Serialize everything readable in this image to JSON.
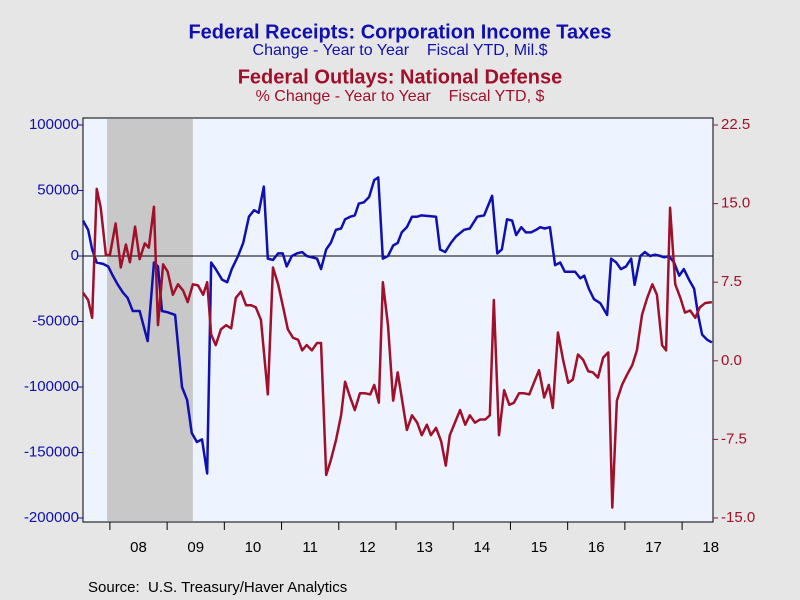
{
  "chart_data": {
    "type": "line",
    "series": [
      {
        "name": "Federal Receipts: Corporation Income Taxes",
        "subtitle": "Change - Year to Year    Fiscal YTD, Mil.$",
        "color": "#1010b0",
        "axis": "y",
        "x": [
          2007.53,
          2007.62,
          2007.69,
          2007.77,
          2007.88,
          2007.97,
          2008.05,
          2008.14,
          2008.23,
          2008.31,
          2008.4,
          2008.52,
          2008.66,
          2008.77,
          2008.84,
          2008.91,
          2009.01,
          2009.14,
          2009.26,
          2009.35,
          2009.43,
          2009.52,
          2009.61,
          2009.7,
          2009.77,
          2009.85,
          2009.96,
          2010.05,
          2010.13,
          2010.24,
          2010.33,
          2010.43,
          2010.52,
          2010.6,
          2010.69,
          2010.76,
          2010.85,
          2010.94,
          2011.02,
          2011.09,
          2011.18,
          2011.27,
          2011.36,
          2011.44,
          2011.53,
          2011.62,
          2011.69,
          2011.78,
          2011.86,
          2011.95,
          2012.04,
          2012.11,
          2012.2,
          2012.28,
          2012.35,
          2012.44,
          2012.53,
          2012.62,
          2012.69,
          2012.77,
          2012.86,
          2012.95,
          2013.03,
          2013.1,
          2013.19,
          2013.28,
          2013.37,
          2013.44,
          2013.7,
          2013.77,
          2013.86,
          2013.96,
          2014.05,
          2014.19,
          2014.29,
          2014.42,
          2014.54,
          2014.68,
          2014.77,
          2014.85,
          2014.94,
          2015.03,
          2015.1,
          2015.19,
          2015.27,
          2015.36,
          2015.45,
          2015.52,
          2015.6,
          2015.69,
          2015.78,
          2015.87,
          2015.95,
          2016.04,
          2016.13,
          2016.22,
          2016.29,
          2016.37,
          2016.46,
          2016.57,
          2016.69,
          2016.76,
          2016.85,
          2016.93,
          2017.02,
          2017.11,
          2017.17,
          2017.27,
          2017.35,
          2017.44,
          2017.53,
          2017.62,
          2017.69,
          2017.77,
          2017.86,
          2017.95,
          2018.03,
          2018.12,
          2018.21,
          2018.28,
          2018.35,
          2018.44,
          2018.52
        ],
        "values": [
          27000,
          20000,
          5000,
          -5000,
          -6000,
          -8000,
          -15000,
          -22000,
          -28000,
          -32000,
          -42000,
          -42000,
          -65000,
          -5000,
          -8000,
          -42000,
          -43000,
          -45000,
          -100000,
          -110000,
          -135000,
          -142000,
          -140000,
          -166000,
          -5000,
          -10000,
          -18000,
          -20000,
          -10000,
          0,
          10000,
          30000,
          35000,
          33000,
          53000,
          -2000,
          -3000,
          2000,
          2000,
          -8000,
          0,
          2000,
          3000,
          0,
          -1000,
          -2000,
          -10000,
          5000,
          10000,
          20000,
          21000,
          28000,
          30000,
          31000,
          40000,
          41000,
          45000,
          58000,
          60000,
          -2000,
          0,
          8000,
          10000,
          18000,
          22000,
          30000,
          30000,
          31000,
          30000,
          5000,
          3000,
          10000,
          15000,
          20000,
          21000,
          30000,
          31000,
          46000,
          2000,
          5000,
          28000,
          27000,
          16000,
          22000,
          18000,
          18000,
          20000,
          22000,
          21000,
          22000,
          -7000,
          -5000,
          -12000,
          -12000,
          -12000,
          -17000,
          -15000,
          -25000,
          -33000,
          -36000,
          -45000,
          -2000,
          -5000,
          -10000,
          -8000,
          -2000,
          -22000,
          0,
          3000,
          0,
          1000,
          0,
          -1000,
          0,
          -5000,
          -15000,
          -10000,
          -18000,
          -25000,
          -45000,
          -60000,
          -64000,
          -66000
        ]
      },
      {
        "name": "Federal Outlays: National Defense",
        "subtitle": "% Change - Year to Year    Fiscal YTD, $",
        "color": "#a0102a",
        "axis": "y2",
        "x": [
          2007.53,
          2007.62,
          2007.69,
          2007.77,
          2007.84,
          2007.93,
          2008.0,
          2008.1,
          2008.19,
          2008.28,
          2008.35,
          2008.44,
          2008.52,
          2008.61,
          2008.68,
          2008.77,
          2008.84,
          2008.93,
          2009.01,
          2009.1,
          2009.19,
          2009.28,
          2009.36,
          2009.45,
          2009.54,
          2009.63,
          2009.7,
          2009.77,
          2009.85,
          2009.94,
          2010.03,
          2010.12,
          2010.2,
          2010.29,
          2010.38,
          2010.47,
          2010.55,
          2010.64,
          2010.76,
          2010.85,
          2010.94,
          2011.02,
          2011.11,
          2011.2,
          2011.29,
          2011.36,
          2011.44,
          2011.53,
          2011.62,
          2011.69,
          2011.78,
          2011.86,
          2011.95,
          2012.04,
          2012.11,
          2012.2,
          2012.28,
          2012.37,
          2012.46,
          2012.55,
          2012.62,
          2012.7,
          2012.77,
          2012.86,
          2012.95,
          2013.03,
          2013.12,
          2013.19,
          2013.28,
          2013.37,
          2013.45,
          2013.54,
          2013.61,
          2013.7,
          2013.79,
          2013.87,
          2013.94,
          2014.03,
          2014.12,
          2014.21,
          2014.29,
          2014.38,
          2014.47,
          2014.56,
          2014.64,
          2014.71,
          2014.8,
          2014.89,
          2014.98,
          2015.06,
          2015.15,
          2015.24,
          2015.33,
          2015.41,
          2015.5,
          2015.59,
          2015.67,
          2015.74,
          2015.83,
          2015.92,
          2016.01,
          2016.09,
          2016.18,
          2016.27,
          2016.36,
          2016.44,
          2016.53,
          2016.62,
          2016.71,
          2016.78,
          2016.86,
          2016.95,
          2017.04,
          2017.13,
          2017.21,
          2017.3,
          2017.39,
          2017.48,
          2017.56,
          2017.65,
          2017.72,
          2017.79,
          2017.88,
          2017.97,
          2018.05,
          2018.14,
          2018.23,
          2018.31,
          2018.4,
          2018.52
        ],
        "values": [
          6.5,
          5.8,
          4.1,
          16.4,
          14.6,
          10.1,
          10.1,
          13.1,
          8.9,
          11.1,
          9.4,
          12.8,
          9.7,
          11.2,
          10.8,
          14.7,
          3.4,
          9.2,
          8.5,
          6.3,
          7.3,
          6.7,
          5.6,
          7.3,
          7.2,
          6.3,
          7.5,
          2.5,
          1.5,
          3.0,
          3.4,
          3.1,
          6.0,
          6.6,
          5.3,
          5.3,
          5.1,
          3.9,
          -3.2,
          8.9,
          7.3,
          5.3,
          3.0,
          2.2,
          2.0,
          1.0,
          1.5,
          1.0,
          1.7,
          1.7,
          -10.9,
          -9.5,
          -7.6,
          -5.2,
          -2.0,
          -3.5,
          -4.7,
          -3.1,
          -3.1,
          -3.2,
          -2.3,
          -4.0,
          7.5,
          3.4,
          -3.8,
          -1.1,
          -4.2,
          -6.6,
          -5.2,
          -5.9,
          -7.1,
          -6.1,
          -7.1,
          -6.4,
          -7.7,
          -10.0,
          -7.1,
          -5.9,
          -4.7,
          -6.1,
          -5.2,
          -5.9,
          -5.6,
          -5.6,
          -5.2,
          5.8,
          -7.1,
          -2.8,
          -4.2,
          -4.0,
          -3.1,
          -3.1,
          -3.2,
          -2.1,
          -0.9,
          -3.5,
          -2.3,
          -4.5,
          2.7,
          0.1,
          -2.1,
          -1.8,
          0.6,
          0.1,
          -1.0,
          -1.1,
          -1.6,
          0.3,
          0.8,
          -14.0,
          -3.8,
          -2.3,
          -1.3,
          -0.4,
          1.0,
          4.4,
          6.0,
          7.3,
          6.3,
          1.5,
          1.0,
          14.6,
          7.3,
          6.0,
          4.6,
          4.8,
          4.1,
          5.1,
          5.5,
          5.6
        ]
      }
    ],
    "xlim": [
      2007.53,
      2018.54
    ],
    "xticks": [
      {
        "value": 2008.5,
        "label": "08"
      },
      {
        "value": 2009.5,
        "label": "09"
      },
      {
        "value": 2010.5,
        "label": "10"
      },
      {
        "value": 2011.5,
        "label": "11"
      },
      {
        "value": 2012.5,
        "label": "12"
      },
      {
        "value": 2013.5,
        "label": "13"
      },
      {
        "value": 2014.5,
        "label": "14"
      },
      {
        "value": 2015.5,
        "label": "15"
      },
      {
        "value": 2016.5,
        "label": "16"
      },
      {
        "value": 2017.5,
        "label": "17"
      },
      {
        "value": 2018.5,
        "label": "18"
      }
    ],
    "xtick_marks": [
      2008,
      2009,
      2010,
      2011,
      2012,
      2013,
      2014,
      2015,
      2016,
      2017,
      2018
    ],
    "ylim": [
      -200000,
      100000
    ],
    "yticks": [
      100000,
      50000,
      0,
      -50000,
      -100000,
      -150000,
      -200000
    ],
    "y2lim": [
      -15,
      22.5
    ],
    "y2ticks": [
      22.5,
      {
        "value": 15,
        "label": "15.0"
      },
      7.5,
      {
        "value": 0,
        "label": "0.0"
      },
      -7.5,
      {
        "value": -15,
        "label": "-15.0"
      }
    ],
    "shading": [
      {
        "start": 2007.95,
        "end": 2009.45
      }
    ],
    "zero_line": true,
    "source": "Source:  U.S. Treasury/Haver Analytics"
  }
}
